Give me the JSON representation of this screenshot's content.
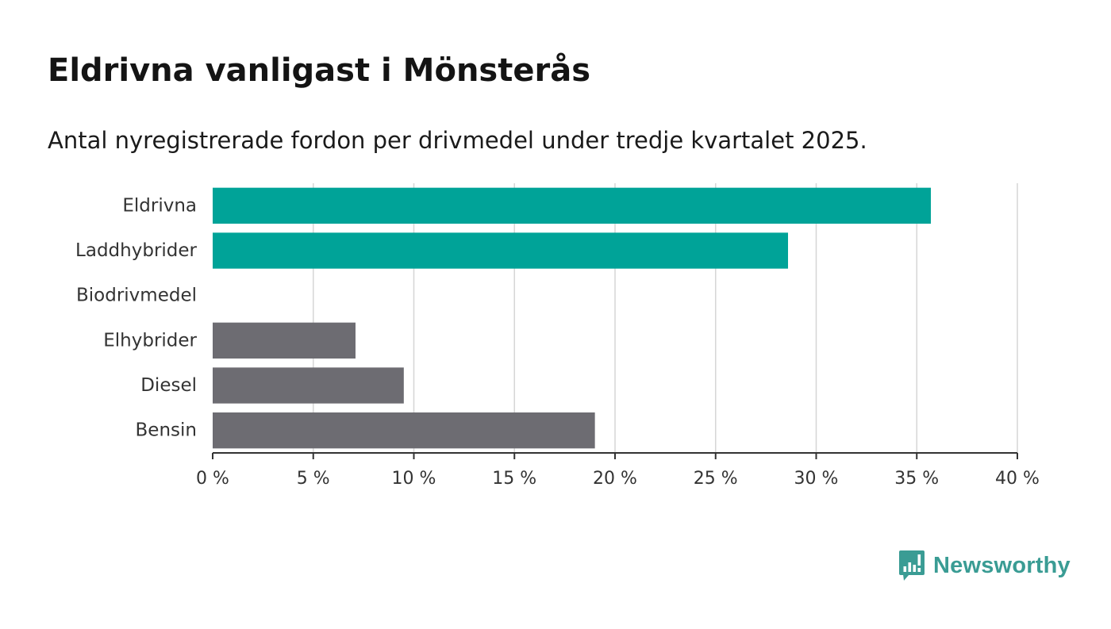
{
  "title": "Eldrivna vanligast i Mönsterås",
  "subtitle": "Antal nyregistrerade fordon per drivmedel under tredje kvartalet 2025.",
  "brand": {
    "name": "Newsworthy",
    "color": "#3a9c94"
  },
  "chart_data": {
    "type": "bar",
    "orientation": "horizontal",
    "categories": [
      "Eldrivna",
      "Laddhybrider",
      "Biodrivmedel",
      "Elhybrider",
      "Diesel",
      "Bensin"
    ],
    "values": [
      35.7,
      28.6,
      0,
      7.1,
      9.5,
      19.0
    ],
    "colors": [
      "#00a398",
      "#00a398",
      "#00a398",
      "#6d6c72",
      "#6d6c72",
      "#6d6c72"
    ],
    "xlim": [
      0,
      40
    ],
    "xticks": [
      0,
      5,
      10,
      15,
      20,
      25,
      30,
      35,
      40
    ],
    "xtick_labels": [
      "0 %",
      "5 %",
      "10 %",
      "15 %",
      "20 %",
      "25 %",
      "30 %",
      "35 %",
      "40 %"
    ],
    "xlabel": "",
    "ylabel": "",
    "grid": true
  }
}
